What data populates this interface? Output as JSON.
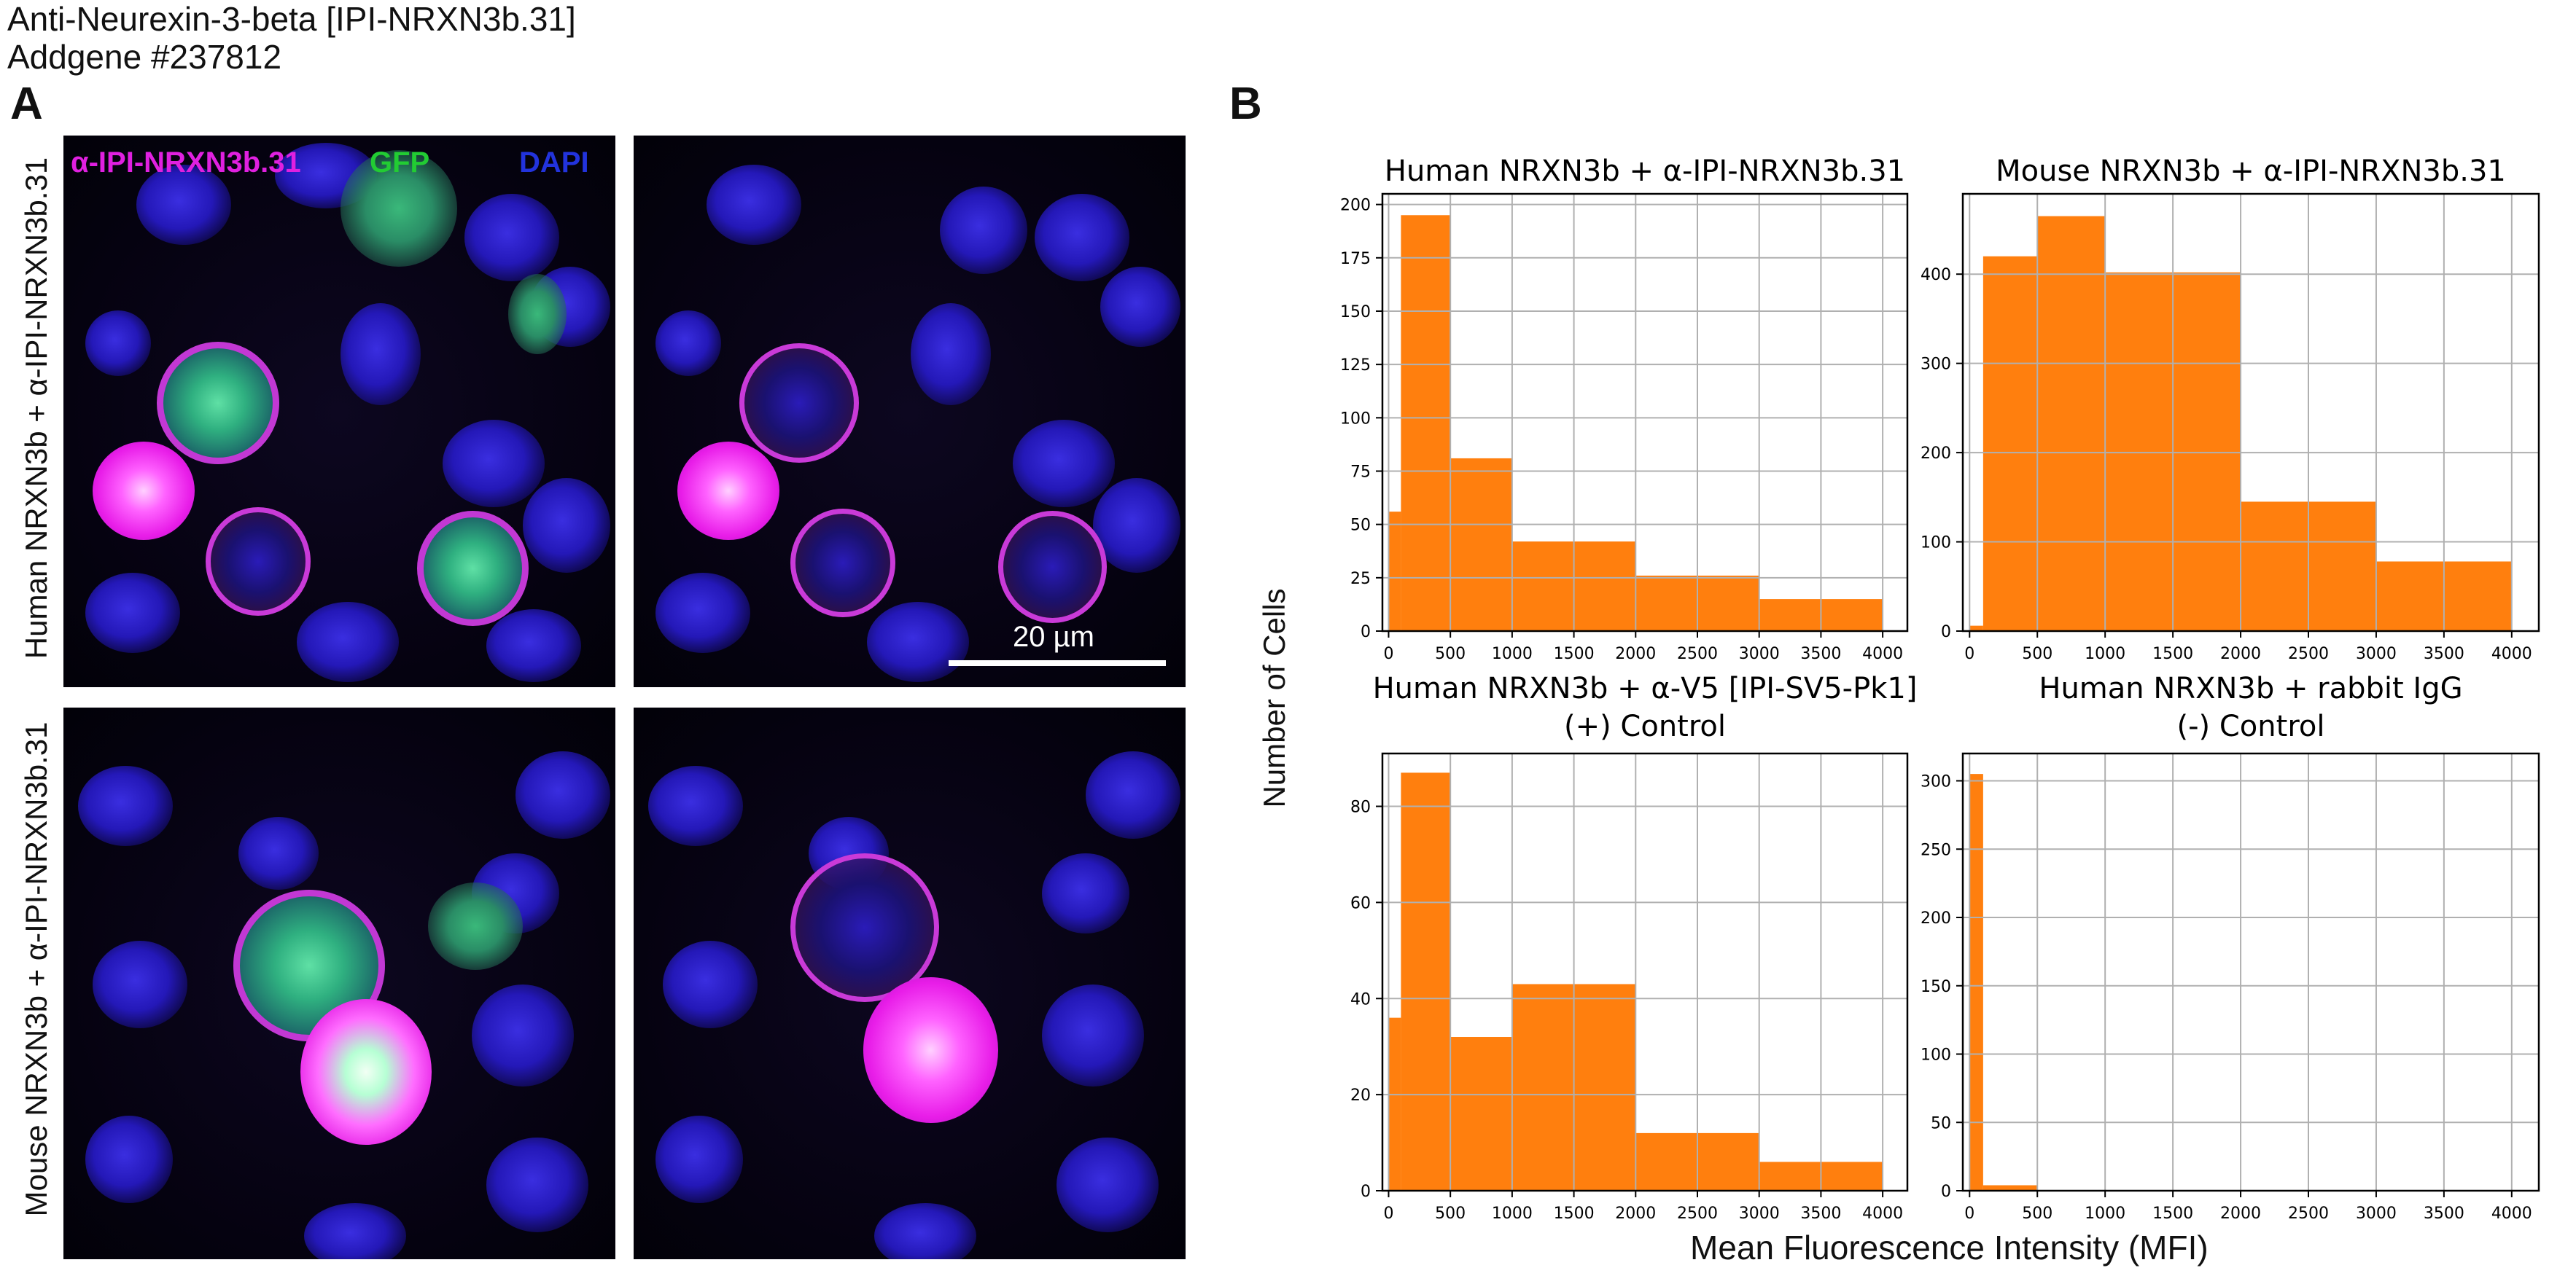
{
  "header": {
    "title": "Anti-Neurexin-3-beta [IPI-NRXN3b.31]",
    "subtitle": "Addgene #237812"
  },
  "panel_a": {
    "letter": "A",
    "channel_labels": {
      "antibody": "α-IPI-NRXN3b.31",
      "gfp": "GFP",
      "dapi": "DAPI"
    },
    "channel_colors": {
      "antibody": "#e020e0",
      "gfp": "#22cc33",
      "dapi": "#2233dd"
    },
    "row_labels": [
      "Human NRXN3b + α-IPI-NRXN3b.31",
      "Mouse NRXN3b + α-IPI-NRXN3b.31"
    ],
    "scale_bar_label": "20 µm"
  },
  "panel_b": {
    "letter": "B",
    "ylabel": "Number of Cells",
    "xlabel": "Mean Fluorescence Intensity (MFI)",
    "bar_color": "#ff7f0e"
  },
  "chart_data": [
    {
      "type": "bar",
      "title": "Human NRXN3b + α-IPI-NRXN3b.31",
      "bin_edges": [
        0,
        100,
        500,
        1000,
        2000,
        3000,
        4000
      ],
      "values": [
        56,
        195,
        81,
        42,
        26,
        15
      ],
      "xlim": [
        -50,
        4200
      ],
      "xticks": [
        0,
        500,
        1000,
        1500,
        2000,
        2500,
        3000,
        3500,
        4000
      ],
      "ylim": [
        0,
        205
      ],
      "yticks": [
        0,
        25,
        50,
        75,
        100,
        125,
        150,
        175,
        200
      ],
      "grid": true
    },
    {
      "type": "bar",
      "title": "Mouse NRXN3b + α-IPI-NRXN3b.31",
      "bin_edges": [
        0,
        100,
        500,
        1000,
        2000,
        3000,
        4000
      ],
      "values": [
        6,
        420,
        465,
        402,
        145,
        78
      ],
      "xlim": [
        -50,
        4200
      ],
      "xticks": [
        0,
        500,
        1000,
        1500,
        2000,
        2500,
        3000,
        3500,
        4000
      ],
      "ylim": [
        0,
        490
      ],
      "yticks": [
        0,
        100,
        200,
        300,
        400
      ],
      "grid": true
    },
    {
      "type": "bar",
      "title": "Human NRXN3b + α-V5 [IPI-SV5-Pk1]",
      "subtitle": "(+) Control",
      "bin_edges": [
        0,
        100,
        500,
        1000,
        2000,
        3000,
        4000
      ],
      "values": [
        36,
        87,
        32,
        43,
        12,
        6
      ],
      "xlim": [
        -50,
        4200
      ],
      "xticks": [
        0,
        500,
        1000,
        1500,
        2000,
        2500,
        3000,
        3500,
        4000
      ],
      "ylim": [
        0,
        91
      ],
      "yticks": [
        0,
        20,
        40,
        60,
        80
      ],
      "grid": true
    },
    {
      "type": "bar",
      "title": "Human NRXN3b + rabbit IgG",
      "subtitle": "(-) Control",
      "bin_edges": [
        0,
        100,
        500,
        1000,
        2000,
        3000,
        4000
      ],
      "values": [
        305,
        4,
        0,
        0,
        0,
        0
      ],
      "xlim": [
        -50,
        4200
      ],
      "xticks": [
        0,
        500,
        1000,
        1500,
        2000,
        2500,
        3000,
        3500,
        4000
      ],
      "ylim": [
        0,
        320
      ],
      "yticks": [
        0,
        50,
        100,
        150,
        200,
        250,
        300
      ],
      "grid": true
    }
  ]
}
